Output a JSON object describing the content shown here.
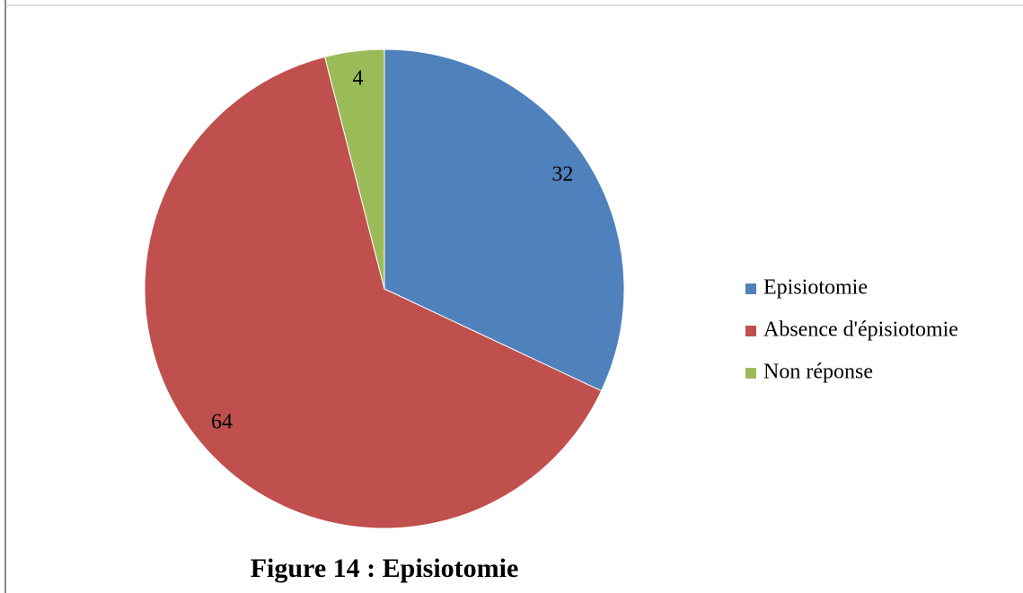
{
  "chart_data": {
    "type": "pie",
    "title": "Figure 14 : Episiotomie",
    "categories": [
      "Episiotomie",
      "Absence d'épisiotomie",
      "Non réponse"
    ],
    "values": [
      32,
      64,
      4
    ],
    "colors": [
      "#4f81bd",
      "#c0504d",
      "#9bbb59"
    ]
  }
}
